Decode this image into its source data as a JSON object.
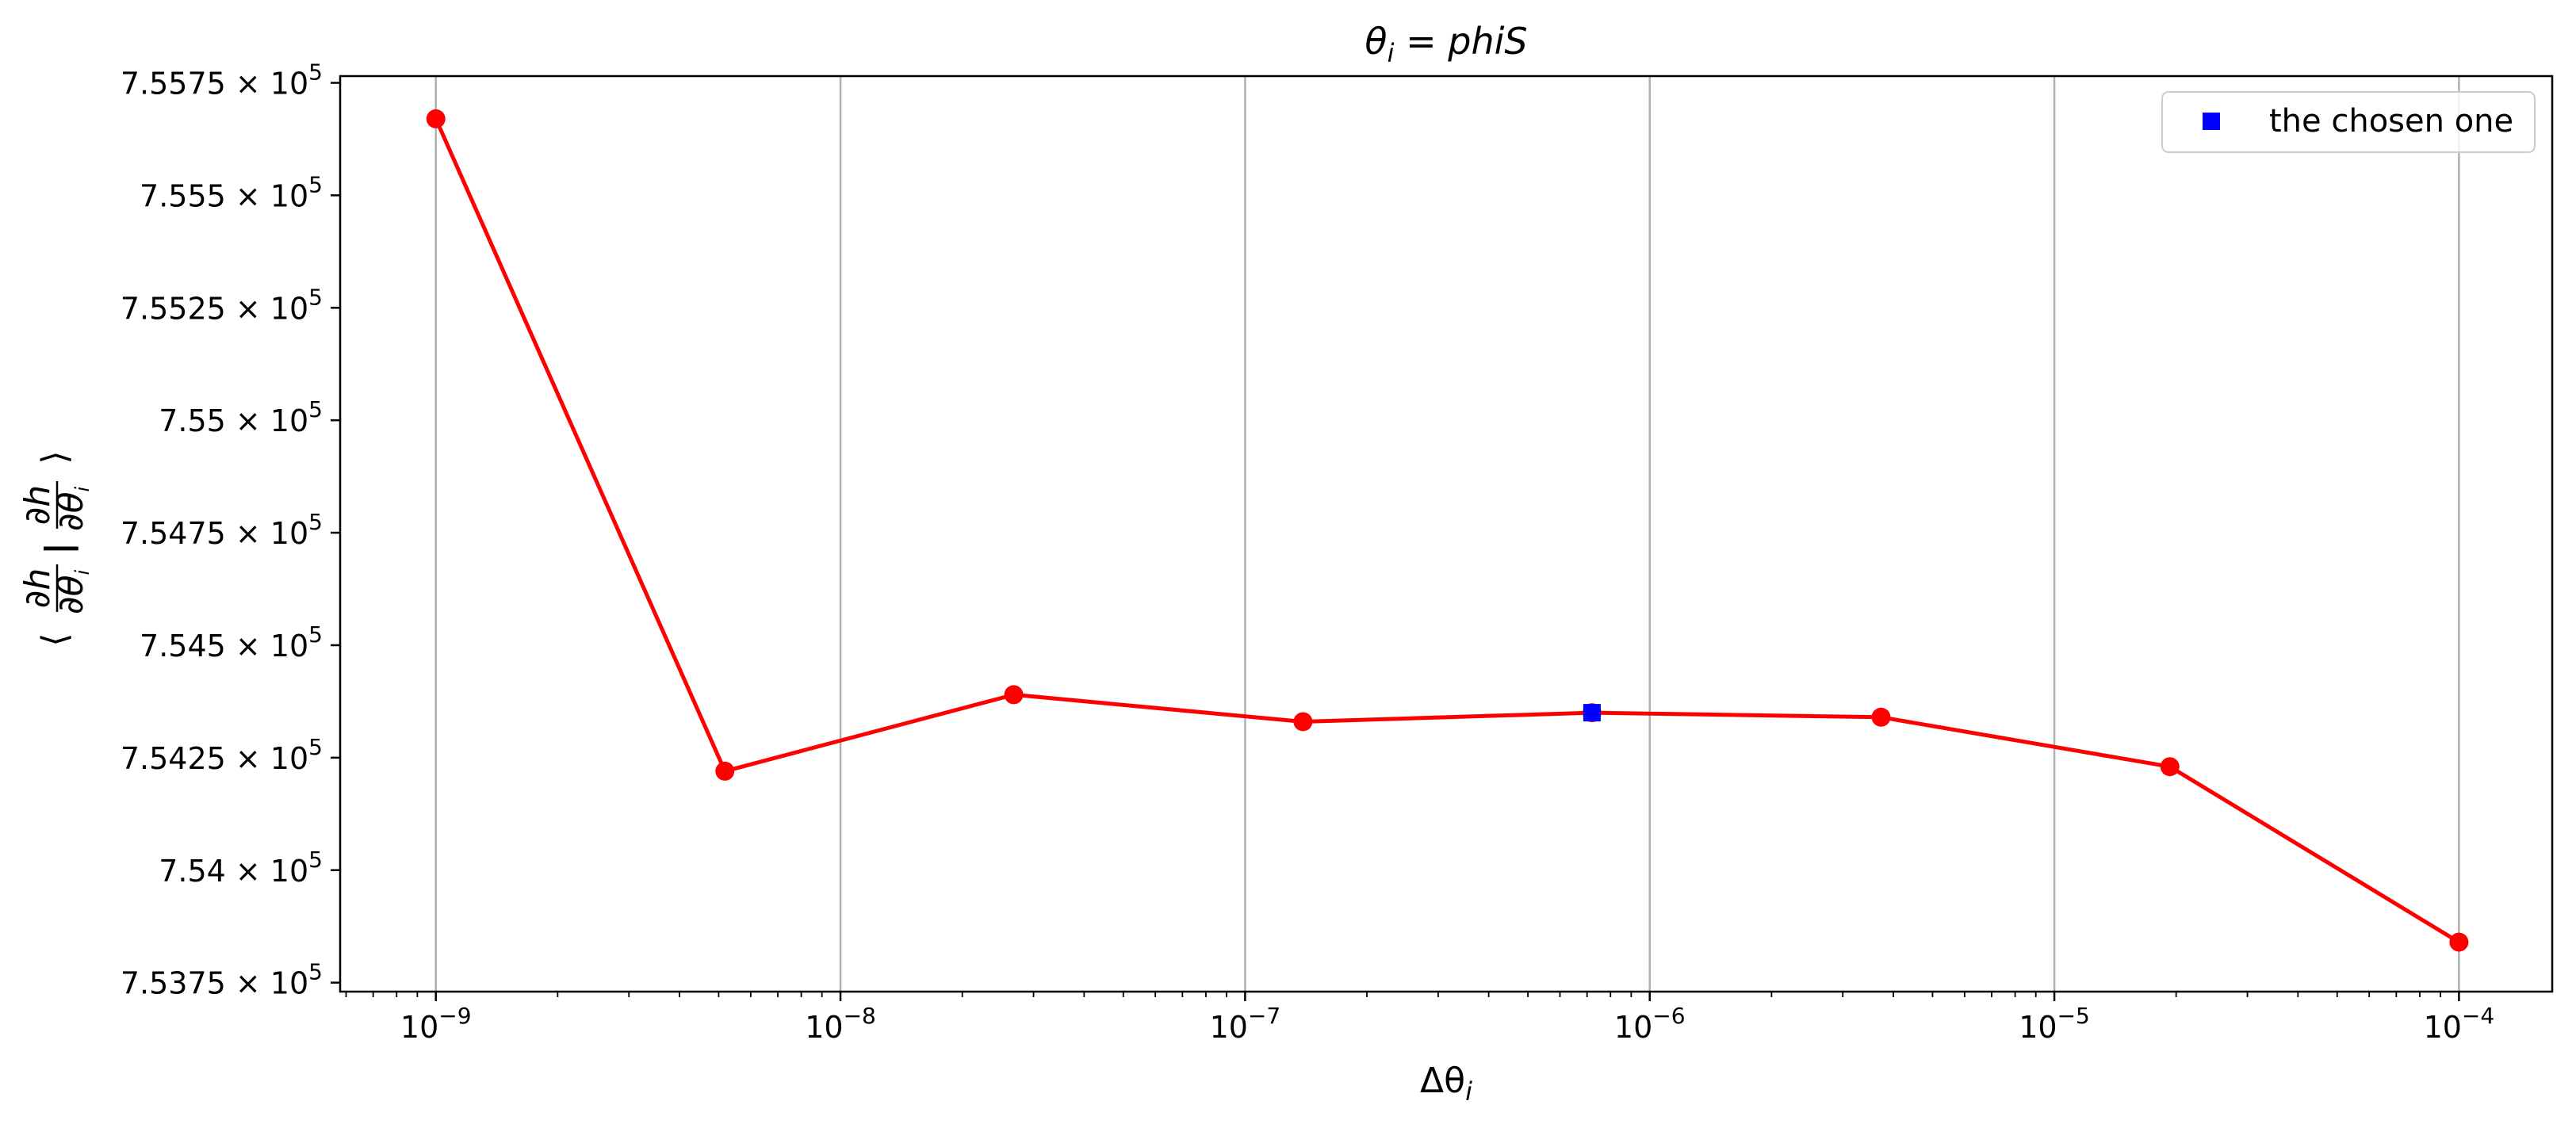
{
  "chart_data": {
    "type": "line",
    "title_parts": [
      "θ",
      "i",
      " = phiS"
    ],
    "title": "θi = phiS",
    "xlabel_parts": [
      "Δθ",
      "i"
    ],
    "xlabel": "Δθi",
    "ylabel_parts": [
      "⟨",
      "∂h",
      "∂θ",
      "i",
      "|",
      "∂h",
      "∂θ",
      "i",
      "⟩"
    ],
    "ylabel": "⟨∂h/∂θi | ∂h/∂θi⟩",
    "x_scale": "log",
    "xlim": [
      5.8e-10,
      0.00017
    ],
    "ylim": [
      753730,
      755765
    ],
    "grid": "x-major",
    "legend_position": "top-right",
    "x_ticks": [
      {
        "value": 1e-09,
        "base": "10",
        "exp": "−9"
      },
      {
        "value": 1e-08,
        "base": "10",
        "exp": "−8"
      },
      {
        "value": 1e-07,
        "base": "10",
        "exp": "−7"
      },
      {
        "value": 1e-06,
        "base": "10",
        "exp": "−6"
      },
      {
        "value": 1e-05,
        "base": "10",
        "exp": "−5"
      },
      {
        "value": 0.0001,
        "base": "10",
        "exp": "−4"
      }
    ],
    "y_ticks": [
      {
        "value": 753750,
        "mant": "7.5375",
        "base": "10",
        "exp": "5"
      },
      {
        "value": 754000,
        "mant": "7.54",
        "base": "10",
        "exp": "5"
      },
      {
        "value": 754250,
        "mant": "7.5425",
        "base": "10",
        "exp": "5"
      },
      {
        "value": 754500,
        "mant": "7.545",
        "base": "10",
        "exp": "5"
      },
      {
        "value": 754750,
        "mant": "7.5475",
        "base": "10",
        "exp": "5"
      },
      {
        "value": 755000,
        "mant": "7.55",
        "base": "10",
        "exp": "5"
      },
      {
        "value": 755250,
        "mant": "7.5525",
        "base": "10",
        "exp": "5"
      },
      {
        "value": 755500,
        "mant": "7.555",
        "base": "10",
        "exp": "5"
      },
      {
        "value": 755750,
        "mant": "7.5575",
        "base": "10",
        "exp": "5"
      }
    ],
    "series": [
      {
        "color": "#ff0000",
        "marker": "circle",
        "x": [
          1e-09,
          5.18e-09,
          2.68e-08,
          1.39e-07,
          7.2e-07,
          3.73e-06,
          1.93e-05,
          0.0001
        ],
        "y": [
          755670,
          754220,
          754390,
          754330,
          754350,
          754340,
          754230,
          753840
        ]
      },
      {
        "name": "the chosen one",
        "color": "#0000ff",
        "marker": "square",
        "x": [
          7.2e-07
        ],
        "y": [
          754350
        ]
      }
    ]
  }
}
